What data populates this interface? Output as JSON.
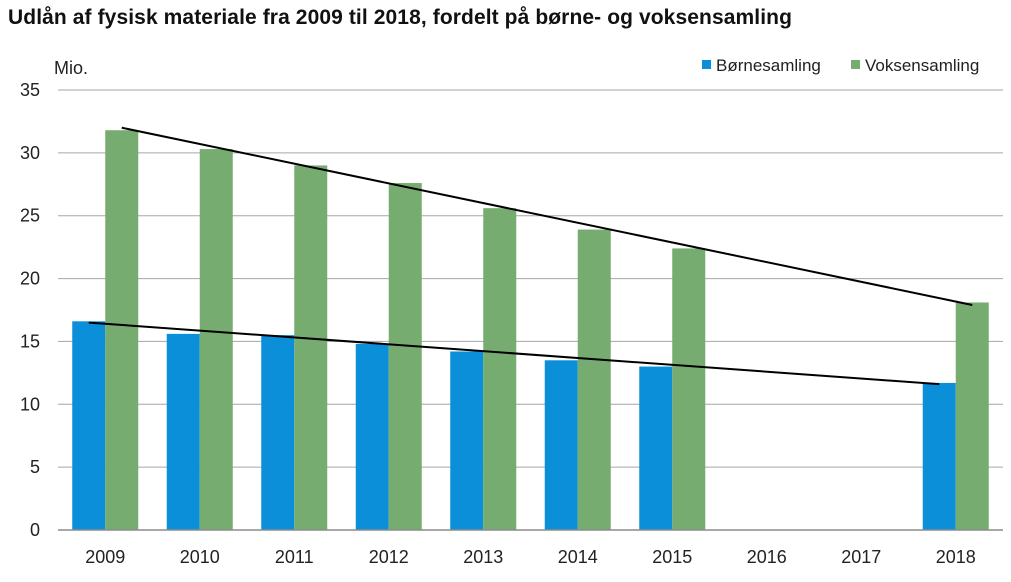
{
  "chart_data": {
    "type": "bar",
    "title": "Udlån af fysisk materiale fra 2009 til 2018, fordelt på børne- og voksensamling",
    "ylabel": "Mio.",
    "xlabel": "",
    "ylim": [
      0,
      35
    ],
    "yticks": [
      0,
      5,
      10,
      15,
      20,
      25,
      30,
      35
    ],
    "grid": true,
    "legend_position": "top-right",
    "categories": [
      "2009",
      "2010",
      "2011",
      "2012",
      "2013",
      "2014",
      "2015",
      "2016",
      "2017",
      "2018"
    ],
    "series": [
      {
        "name": "Børnesamling",
        "color": "#0a8fd8",
        "values": [
          16.6,
          15.6,
          15.5,
          14.8,
          14.2,
          13.5,
          13.0,
          null,
          null,
          11.7
        ]
      },
      {
        "name": "Voksensamling",
        "color": "#77ac70",
        "values": [
          31.8,
          30.3,
          29.0,
          27.6,
          25.6,
          23.9,
          22.4,
          null,
          null,
          18.1
        ]
      }
    ],
    "trendlines": [
      {
        "series": "Børnesamling",
        "color": "#000000",
        "from": {
          "x": "2009",
          "y": 16.5
        },
        "to": {
          "x": "2018",
          "y": 11.6
        }
      },
      {
        "series": "Voksensamling",
        "color": "#000000",
        "from": {
          "x": "2009",
          "y": 32.0
        },
        "to": {
          "x": "2018",
          "y": 17.9
        }
      }
    ]
  }
}
